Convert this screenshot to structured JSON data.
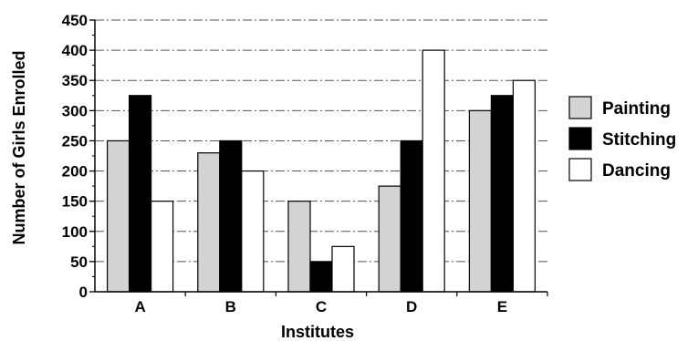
{
  "chart_data": {
    "type": "bar",
    "title": "",
    "xlabel": "Institutes",
    "ylabel": "Number of Girls Enrolled",
    "categories": [
      "A",
      "B",
      "C",
      "D",
      "E"
    ],
    "ylim": [
      0,
      450
    ],
    "yticks": [
      0,
      50,
      100,
      150,
      200,
      250,
      300,
      350,
      400,
      450
    ],
    "grid": true,
    "legend_position": "right",
    "series": [
      {
        "name": "Painting",
        "color": "#d3d3d3",
        "values": [
          250,
          230,
          150,
          175,
          300
        ]
      },
      {
        "name": "Stitching",
        "color": "#000000",
        "values": [
          325,
          250,
          50,
          250,
          325
        ]
      },
      {
        "name": "Dancing",
        "color": "#ffffff",
        "values": [
          150,
          200,
          75,
          400,
          350
        ]
      }
    ]
  }
}
